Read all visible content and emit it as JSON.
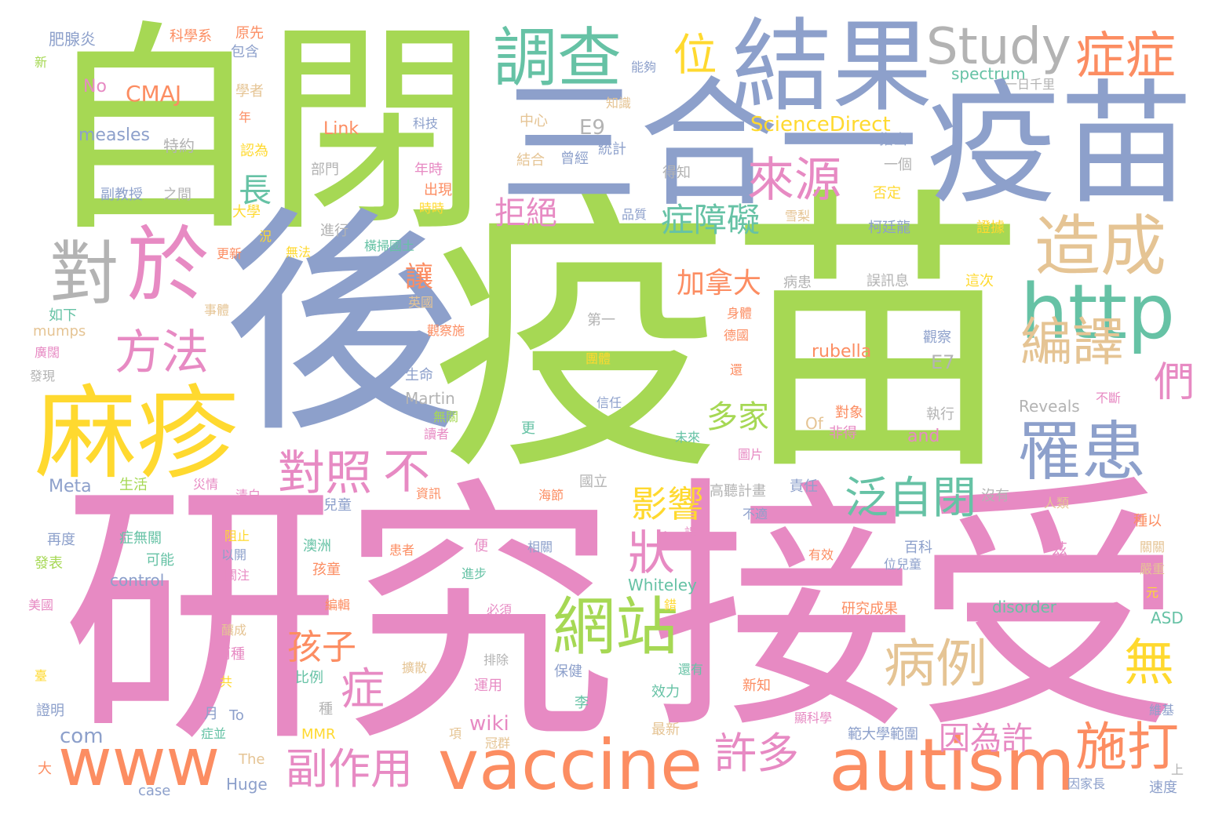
{
  "palette": {
    "green": "#a6d854",
    "pink": "#e78ac3",
    "blue": "#8da0cb",
    "teal": "#66c2a5",
    "orange": "#fc8d62",
    "yellow": "#ffd92f",
    "tan": "#e5c494",
    "gray": "#b3b3b3"
  },
  "words": [
    {
      "text": "疫苗",
      "color": "green"
    },
    {
      "text": "研究",
      "color": "pink"
    },
    {
      "text": "接受",
      "color": "pink"
    },
    {
      "text": "自閉",
      "color": "green"
    },
    {
      "text": "後",
      "color": "blue"
    },
    {
      "text": "三合一",
      "color": "blue"
    },
    {
      "text": "疫苗",
      "color": "blue"
    },
    {
      "text": "結果",
      "color": "blue"
    },
    {
      "text": "麻疹",
      "color": "yellow"
    },
    {
      "text": "於",
      "color": "pink"
    },
    {
      "text": "對",
      "color": "gray"
    },
    {
      "text": "www",
      "color": "orange"
    },
    {
      "text": "vaccine",
      "color": "orange"
    },
    {
      "text": "autism",
      "color": "orange"
    },
    {
      "text": "http",
      "color": "teal"
    },
    {
      "text": "調查",
      "color": "teal"
    },
    {
      "text": "Study",
      "color": "gray"
    },
    {
      "text": "症症",
      "color": "orange"
    },
    {
      "text": "位",
      "color": "yellow"
    },
    {
      "text": "造成",
      "color": "tan"
    },
    {
      "text": "罹患",
      "color": "blue"
    },
    {
      "text": "網站",
      "color": "green"
    },
    {
      "text": "編譯",
      "color": "tan"
    },
    {
      "text": "方法",
      "color": "pink"
    },
    {
      "text": "對照",
      "color": "pink"
    },
    {
      "text": "不",
      "color": "pink"
    },
    {
      "text": "來源",
      "color": "pink"
    },
    {
      "text": "症障礙",
      "color": "teal"
    },
    {
      "text": "泛自閉",
      "color": "teal"
    },
    {
      "text": "病例",
      "color": "tan"
    },
    {
      "text": "施打",
      "color": "orange"
    },
    {
      "text": "許多",
      "color": "pink"
    },
    {
      "text": "副作用",
      "color": "pink"
    },
    {
      "text": "因為許",
      "color": "pink"
    },
    {
      "text": "影響",
      "color": "yellow"
    },
    {
      "text": "拒絕",
      "color": "pink"
    },
    {
      "text": "長",
      "color": "teal"
    },
    {
      "text": "狀",
      "color": "pink"
    },
    {
      "text": "孩子",
      "color": "orange"
    },
    {
      "text": "症",
      "color": "pink"
    },
    {
      "text": "無",
      "color": "yellow"
    },
    {
      "text": "們",
      "color": "pink"
    },
    {
      "text": "加拿大",
      "color": "orange"
    },
    {
      "text": "多家",
      "color": "green"
    },
    {
      "text": "讓",
      "color": "orange"
    },
    {
      "text": "CMAJ",
      "color": "orange"
    },
    {
      "text": "ScienceDirect",
      "color": "yellow"
    },
    {
      "text": "E9",
      "color": "gray"
    },
    {
      "text": "measles",
      "color": "blue"
    },
    {
      "text": "Link",
      "color": "orange"
    },
    {
      "text": "spectrum",
      "color": "teal"
    },
    {
      "text": "No",
      "color": "pink"
    },
    {
      "text": "rubella",
      "color": "orange"
    },
    {
      "text": "E7",
      "color": "gray"
    },
    {
      "text": "Martin",
      "color": "gray"
    },
    {
      "text": "Reveals",
      "color": "gray"
    },
    {
      "text": "Of",
      "color": "tan"
    },
    {
      "text": "and",
      "color": "pink"
    },
    {
      "text": "wiki",
      "color": "pink"
    },
    {
      "text": "com",
      "color": "blue"
    },
    {
      "text": "Meta",
      "color": "blue"
    },
    {
      "text": "control",
      "color": "blue"
    },
    {
      "text": "Whiteley",
      "color": "teal"
    },
    {
      "text": "disorder",
      "color": "teal"
    },
    {
      "text": "ASD",
      "color": "teal"
    },
    {
      "text": "MMR",
      "color": "yellow"
    },
    {
      "text": "The",
      "color": "tan"
    },
    {
      "text": "Huge",
      "color": "blue"
    },
    {
      "text": "case",
      "color": "blue"
    },
    {
      "text": "To",
      "color": "blue"
    },
    {
      "text": "mumps",
      "color": "tan"
    },
    {
      "text": "肥腺炎",
      "color": "blue"
    },
    {
      "text": "科學系",
      "color": "orange"
    },
    {
      "text": "原先",
      "color": "orange"
    },
    {
      "text": "包含",
      "color": "blue"
    },
    {
      "text": "能夠",
      "color": "blue"
    },
    {
      "text": "一日千里",
      "color": "gray"
    },
    {
      "text": "新",
      "color": "green"
    },
    {
      "text": "學者",
      "color": "tan"
    },
    {
      "text": "年",
      "color": "orange"
    },
    {
      "text": "知識",
      "color": "tan"
    },
    {
      "text": "中心",
      "color": "tan"
    },
    {
      "text": "科技",
      "color": "blue"
    },
    {
      "text": "特約",
      "color": "gray"
    },
    {
      "text": "認為",
      "color": "yellow"
    },
    {
      "text": "年時",
      "color": "pink"
    },
    {
      "text": "結合",
      "color": "tan"
    },
    {
      "text": "曾經",
      "color": "blue"
    },
    {
      "text": "統計",
      "color": "blue"
    },
    {
      "text": "指出",
      "color": "blue"
    },
    {
      "text": "一個",
      "color": "gray"
    },
    {
      "text": "得知",
      "color": "gray"
    },
    {
      "text": "否定",
      "color": "yellow"
    },
    {
      "text": "部門",
      "color": "gray"
    },
    {
      "text": "出現",
      "color": "orange"
    },
    {
      "text": "時時",
      "color": "yellow"
    },
    {
      "text": "副教授",
      "color": "blue"
    },
    {
      "text": "之間",
      "color": "gray"
    },
    {
      "text": "大學",
      "color": "yellow"
    },
    {
      "text": "品質",
      "color": "blue"
    },
    {
      "text": "雪梨",
      "color": "tan"
    },
    {
      "text": "柯廷龍",
      "color": "blue"
    },
    {
      "text": "證據",
      "color": "yellow"
    },
    {
      "text": "況",
      "color": "yellow"
    },
    {
      "text": "進行",
      "color": "gray"
    },
    {
      "text": "橫掃國土",
      "color": "teal"
    },
    {
      "text": "更新",
      "color": "orange"
    },
    {
      "text": "無法",
      "color": "yellow"
    },
    {
      "text": "病患",
      "color": "gray"
    },
    {
      "text": "誤訊息",
      "color": "gray"
    },
    {
      "text": "這次",
      "color": "yellow"
    },
    {
      "text": "英國",
      "color": "tan"
    },
    {
      "text": "事體",
      "color": "tan"
    },
    {
      "text": "如下",
      "color": "teal"
    },
    {
      "text": "第一",
      "color": "gray"
    },
    {
      "text": "身體",
      "color": "orange"
    },
    {
      "text": "德國",
      "color": "orange"
    },
    {
      "text": "觀察施",
      "color": "orange"
    },
    {
      "text": "觀察",
      "color": "blue"
    },
    {
      "text": "廣闊",
      "color": "pink"
    },
    {
      "text": "團體",
      "color": "yellow"
    },
    {
      "text": "還",
      "color": "orange"
    },
    {
      "text": "發現",
      "color": "gray"
    },
    {
      "text": "生命",
      "color": "blue"
    },
    {
      "text": "信任",
      "color": "blue"
    },
    {
      "text": "不斷",
      "color": "pink"
    },
    {
      "text": "無關",
      "color": "green"
    },
    {
      "text": "對象",
      "color": "orange"
    },
    {
      "text": "執行",
      "color": "gray"
    },
    {
      "text": "讀者",
      "color": "pink"
    },
    {
      "text": "更",
      "color": "teal"
    },
    {
      "text": "非得",
      "color": "pink"
    },
    {
      "text": "未來",
      "color": "teal"
    },
    {
      "text": "圖片",
      "color": "pink"
    },
    {
      "text": "生活",
      "color": "green"
    },
    {
      "text": "災情",
      "color": "pink"
    },
    {
      "text": "清白",
      "color": "pink"
    },
    {
      "text": "國立",
      "color": "gray"
    },
    {
      "text": "海節",
      "color": "orange"
    },
    {
      "text": "高聽計畫",
      "color": "gray"
    },
    {
      "text": "責任",
      "color": "blue"
    },
    {
      "text": "沒有",
      "color": "gray"
    },
    {
      "text": "兒童",
      "color": "blue"
    },
    {
      "text": "資訊",
      "color": "orange"
    },
    {
      "text": "人類",
      "color": "tan"
    },
    {
      "text": "不適",
      "color": "blue"
    },
    {
      "text": "種以",
      "color": "orange"
    },
    {
      "text": "再度",
      "color": "blue"
    },
    {
      "text": "症無關",
      "color": "teal"
    },
    {
      "text": "阻止",
      "color": "yellow"
    },
    {
      "text": "以開",
      "color": "blue"
    },
    {
      "text": "澳洲",
      "color": "teal"
    },
    {
      "text": "便",
      "color": "pink"
    },
    {
      "text": "患者",
      "color": "orange"
    },
    {
      "text": "相關",
      "color": "blue"
    },
    {
      "text": "誤",
      "color": "pink"
    },
    {
      "text": "百科",
      "color": "blue"
    },
    {
      "text": "茲",
      "color": "pink"
    },
    {
      "text": "關關",
      "color": "tan"
    },
    {
      "text": "發表",
      "color": "green"
    },
    {
      "text": "可能",
      "color": "teal"
    },
    {
      "text": "孩童",
      "color": "orange"
    },
    {
      "text": "有效",
      "color": "orange"
    },
    {
      "text": "位兒童",
      "color": "blue"
    },
    {
      "text": "嚴重",
      "color": "tan"
    },
    {
      "text": "關注",
      "color": "pink"
    },
    {
      "text": "進步",
      "color": "teal"
    },
    {
      "text": "元",
      "color": "yellow"
    },
    {
      "text": "美國",
      "color": "pink"
    },
    {
      "text": "編輯",
      "color": "orange"
    },
    {
      "text": "必須",
      "color": "pink"
    },
    {
      "text": "錯",
      "color": "yellow"
    },
    {
      "text": "研究成果",
      "color": "orange"
    },
    {
      "text": "釀成",
      "color": "tan"
    },
    {
      "text": "兩種",
      "color": "pink"
    },
    {
      "text": "排除",
      "color": "gray"
    },
    {
      "text": "還有",
      "color": "teal"
    },
    {
      "text": "擴散",
      "color": "tan"
    },
    {
      "text": "保健",
      "color": "blue"
    },
    {
      "text": "臺",
      "color": "yellow"
    },
    {
      "text": "比例",
      "color": "teal"
    },
    {
      "text": "共",
      "color": "yellow"
    },
    {
      "text": "運用",
      "color": "pink"
    },
    {
      "text": "新知",
      "color": "orange"
    },
    {
      "text": "效力",
      "color": "teal"
    },
    {
      "text": "種",
      "color": "gray"
    },
    {
      "text": "證明",
      "color": "blue"
    },
    {
      "text": "李",
      "color": "teal"
    },
    {
      "text": "維基",
      "color": "blue"
    },
    {
      "text": "月",
      "color": "blue"
    },
    {
      "text": "最新",
      "color": "tan"
    },
    {
      "text": "顯科學",
      "color": "pink"
    },
    {
      "text": "症並",
      "color": "teal"
    },
    {
      "text": "項",
      "color": "tan"
    },
    {
      "text": "冠群",
      "color": "tan"
    },
    {
      "text": "範大學範圍",
      "color": "blue"
    },
    {
      "text": "大",
      "color": "orange"
    },
    {
      "text": "上",
      "color": "gray"
    },
    {
      "text": "因家長",
      "color": "blue"
    },
    {
      "text": "速度",
      "color": "blue"
    }
  ]
}
